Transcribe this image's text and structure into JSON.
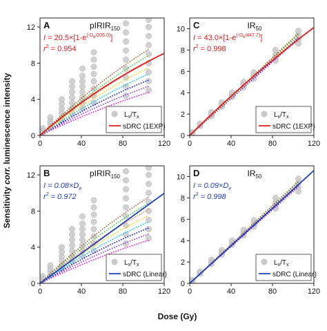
{
  "figure": {
    "ylabel_pre": "Sensitivity ",
    "ylabel_em": "corr.",
    "ylabel_post": " luminescence intensity",
    "xlabel": "Dose (Gy)"
  },
  "colors": {
    "points": "#c9c9c9",
    "exp_fit": "#e41a1c",
    "lin_fit": "#1f3fbf",
    "eq_exp": "#e41a1c",
    "eq_lin": "#1f3fbf",
    "dotted": [
      "#ff00ff",
      "#8a2be2",
      "#0000cd",
      "#00bfff",
      "#ffd700",
      "#ff7f50",
      "#32cd32",
      "#a0522d"
    ]
  },
  "chart_data": [
    {
      "type": "scatter",
      "letter": "A",
      "title_main": "pIRIR",
      "title_sub": "150",
      "xlim": [
        0,
        120
      ],
      "ylim": [
        0,
        13
      ],
      "xticks": [
        0,
        40,
        80,
        120
      ],
      "yticks": [
        0,
        4,
        8,
        12
      ],
      "eq_line1": {
        "a": "I",
        "b": " = 20.5×[1-e",
        "sup": "(-D",
        "supsub": "e",
        "sup2": "/205.0)",
        "c": "]"
      },
      "eq_line2": {
        "a": "r",
        "b": "2",
        "c": " = 0.954"
      },
      "eq_style": "exp",
      "legend": {
        "points_pre": "L",
        "points_sub1": "x",
        "points_mid": "/T",
        "points_sub2": "x",
        "fit": "sDRC (1EXP)"
      },
      "fit": {
        "model": "exp",
        "a": 20.5,
        "d0": 205.0
      },
      "points": [
        {
          "x": 0,
          "ys": [
            0.0,
            0.2,
            0.4
          ]
        },
        {
          "x": 2.5,
          "ys": [
            0.3,
            0.5,
            0.8
          ]
        },
        {
          "x": 10,
          "ys": [
            0.9,
            1.3,
            1.6,
            2.0
          ]
        },
        {
          "x": 21,
          "ys": [
            1.6,
            2.0,
            2.5,
            3.0,
            3.5,
            4.0
          ]
        },
        {
          "x": 31,
          "ys": [
            2.4,
            3.0,
            3.6,
            4.2,
            4.8,
            5.4,
            6.0
          ]
        },
        {
          "x": 41,
          "ys": [
            3.0,
            3.6,
            4.2,
            4.8,
            5.4,
            6.0,
            6.6,
            7.4
          ]
        },
        {
          "x": 52,
          "ys": [
            3.6,
            4.4,
            5.2,
            6.0,
            6.8,
            7.6,
            8.4,
            9.2
          ]
        },
        {
          "x": 83,
          "ys": [
            4.4,
            5.4,
            6.4,
            7.4,
            8.4,
            9.4,
            10.4,
            11.4,
            12.4
          ]
        },
        {
          "x": 105,
          "ys": [
            5.0,
            6.0,
            7.0,
            8.0,
            9.0,
            10.0,
            11.0,
            12.0,
            12.8
          ]
        }
      ]
    },
    {
      "type": "scatter",
      "letter": "C",
      "title_main": "IR",
      "title_sub": "50",
      "xlim": [
        0,
        120
      ],
      "ylim": [
        0,
        11
      ],
      "xticks": [
        0,
        40,
        80,
        120
      ],
      "yticks": [
        0,
        2,
        4,
        6,
        8,
        10
      ],
      "eq_line1": {
        "a": "I",
        "b": " = 43.0×[1-e",
        "sup": "(-D",
        "supsub": "e",
        "sup2": "/447.7)",
        "c": "]"
      },
      "eq_line2": {
        "a": "r",
        "b": "2",
        "c": " = 0.998"
      },
      "eq_style": "exp",
      "legend": {
        "points_pre": "L",
        "points_sub1": "x",
        "points_mid": "/T",
        "points_sub2": "x",
        "fit": "sDRC (1EXP)"
      },
      "fit": {
        "model": "exp",
        "a": 43.0,
        "d0": 447.7
      },
      "points": [
        {
          "x": 0,
          "ys": [
            0.0,
            0.1
          ]
        },
        {
          "x": 2.5,
          "ys": [
            0.2,
            0.3
          ]
        },
        {
          "x": 10,
          "ys": [
            0.9,
            1.0,
            1.1
          ]
        },
        {
          "x": 21,
          "ys": [
            1.8,
            2.0,
            2.2
          ]
        },
        {
          "x": 31,
          "ys": [
            2.7,
            2.9,
            3.1
          ]
        },
        {
          "x": 41,
          "ys": [
            3.6,
            3.8,
            4.0
          ]
        },
        {
          "x": 52,
          "ys": [
            4.5,
            4.8,
            5.0
          ]
        },
        {
          "x": 62,
          "ys": [
            5.3,
            5.6,
            5.9
          ]
        },
        {
          "x": 83,
          "ys": [
            7.0,
            7.3,
            7.6,
            8.0
          ]
        },
        {
          "x": 105,
          "ys": [
            8.6,
            9.0,
            9.4,
            9.8
          ]
        }
      ]
    },
    {
      "type": "scatter",
      "letter": "B",
      "title_main": "pIRIR",
      "title_sub": "150",
      "xlim": [
        0,
        120
      ],
      "ylim": [
        0,
        13
      ],
      "xticks": [
        0,
        40,
        80,
        120
      ],
      "yticks": [
        0,
        4,
        8,
        12
      ],
      "eq_line1": {
        "a": "I",
        "b": " = 0.08×D",
        "sup": "",
        "supsub": "e",
        "sup2": "",
        "c": ""
      },
      "eq_line2": {
        "a": "r",
        "b": "2",
        "c": " = 0.972"
      },
      "eq_style": "lin",
      "legend": {
        "points_pre": "L",
        "points_sub1": "x",
        "points_mid": "/T",
        "points_sub2": "x",
        "fit": "sDRC (Linear)"
      },
      "fit": {
        "model": "linear",
        "slope": 0.083
      },
      "points": [
        {
          "x": 0,
          "ys": [
            0.0,
            0.2,
            0.4
          ]
        },
        {
          "x": 2.5,
          "ys": [
            0.3,
            0.5,
            0.8
          ]
        },
        {
          "x": 10,
          "ys": [
            0.9,
            1.3,
            1.6,
            2.0
          ]
        },
        {
          "x": 21,
          "ys": [
            1.6,
            2.0,
            2.5,
            3.0,
            3.5,
            4.0
          ]
        },
        {
          "x": 31,
          "ys": [
            2.4,
            3.0,
            3.6,
            4.2,
            4.8,
            5.4,
            6.0
          ]
        },
        {
          "x": 41,
          "ys": [
            3.0,
            3.6,
            4.2,
            4.8,
            5.4,
            6.0,
            6.6,
            7.4
          ]
        },
        {
          "x": 52,
          "ys": [
            3.6,
            4.4,
            5.2,
            6.0,
            6.8,
            7.6,
            8.4,
            9.2
          ]
        },
        {
          "x": 83,
          "ys": [
            4.4,
            5.4,
            6.4,
            7.4,
            8.4,
            9.4,
            10.4,
            11.4,
            12.4
          ]
        },
        {
          "x": 105,
          "ys": [
            5.0,
            6.0,
            7.0,
            8.0,
            9.0,
            10.0,
            11.0,
            12.0,
            12.8
          ]
        }
      ]
    },
    {
      "type": "scatter",
      "letter": "D",
      "title_main": "IR",
      "title_sub": "50",
      "xlim": [
        0,
        120
      ],
      "ylim": [
        0,
        11
      ],
      "xticks": [
        0,
        40,
        80,
        120
      ],
      "yticks": [
        0,
        2,
        4,
        6,
        8,
        10
      ],
      "eq_line1": {
        "a": "I",
        "b": " = 0.09×D",
        "sup": "",
        "supsub": "e",
        "sup2": "",
        "c": ""
      },
      "eq_line2": {
        "a": "r",
        "b": "2",
        "c": " = 0.998"
      },
      "eq_style": "lin",
      "legend": {
        "points_pre": "L",
        "points_sub1": "x",
        "points_mid": "/T",
        "points_sub2": "x",
        "fit": "sDRC (Linear)"
      },
      "fit": {
        "model": "linear",
        "slope": 0.088
      },
      "points": [
        {
          "x": 0,
          "ys": [
            0.0,
            0.1
          ]
        },
        {
          "x": 2.5,
          "ys": [
            0.2,
            0.3
          ]
        },
        {
          "x": 10,
          "ys": [
            0.9,
            1.0,
            1.1
          ]
        },
        {
          "x": 21,
          "ys": [
            1.8,
            2.0,
            2.2
          ]
        },
        {
          "x": 31,
          "ys": [
            2.7,
            2.9,
            3.1
          ]
        },
        {
          "x": 41,
          "ys": [
            3.6,
            3.8,
            4.0
          ]
        },
        {
          "x": 52,
          "ys": [
            4.5,
            4.8,
            5.0
          ]
        },
        {
          "x": 62,
          "ys": [
            5.3,
            5.6,
            5.9
          ]
        },
        {
          "x": 83,
          "ys": [
            7.0,
            7.3,
            7.6,
            8.0
          ]
        },
        {
          "x": 105,
          "ys": [
            8.6,
            9.0,
            9.4,
            9.8
          ]
        }
      ]
    }
  ]
}
